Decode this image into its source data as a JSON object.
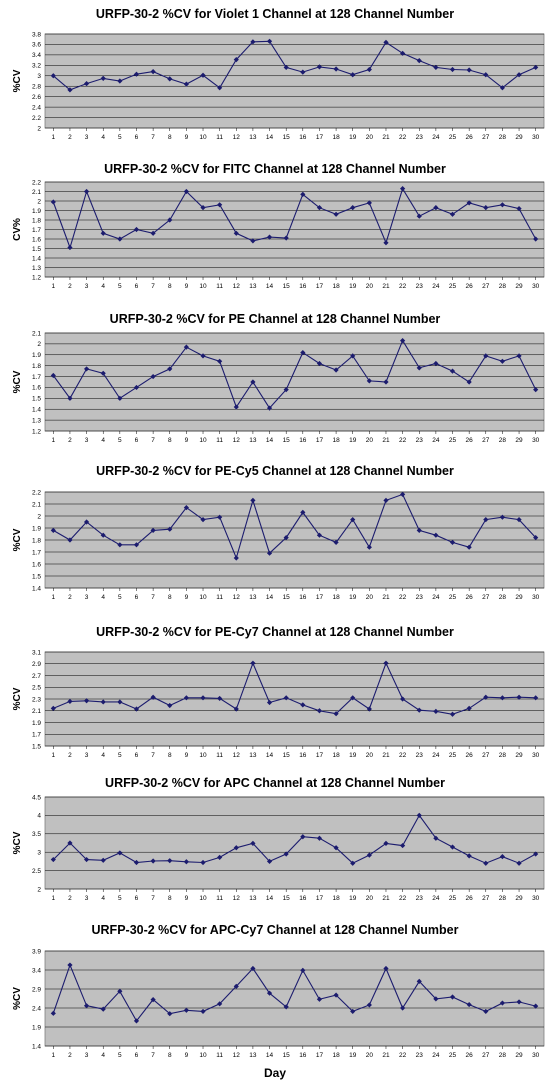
{
  "xlabel": "Day",
  "chart_data": [
    {
      "type": "line",
      "title": "URFP-30-2 %CV for Violet 1 Channel at 128 Channel Number",
      "ylabel": "%CV",
      "xlabel": "",
      "ylim": [
        2.0,
        3.8
      ],
      "yticks": [
        "2",
        "2.2",
        "2.4",
        "2.6",
        "2.8",
        "3",
        "3.2",
        "3.4",
        "3.6",
        "3.8"
      ],
      "grid": true,
      "x": [
        1,
        2,
        3,
        4,
        5,
        6,
        7,
        8,
        9,
        10,
        11,
        12,
        13,
        14,
        15,
        16,
        17,
        18,
        19,
        20,
        21,
        22,
        23,
        24,
        25,
        26,
        27,
        28,
        29,
        30
      ],
      "series": [
        {
          "values": [
            3.0,
            2.73,
            2.85,
            2.95,
            2.9,
            3.03,
            3.08,
            2.94,
            2.84,
            3.01,
            2.77,
            3.31,
            3.65,
            3.66,
            3.16,
            3.07,
            3.17,
            3.13,
            3.02,
            3.12,
            3.64,
            3.43,
            3.29,
            3.16,
            3.12,
            3.11,
            3.02,
            2.77,
            3.02,
            3.16
          ]
        }
      ]
    },
    {
      "type": "line",
      "title": "URFP-30-2 %CV for FITC Channel at 128 Channel Number",
      "ylabel": "CV%",
      "xlabel": "",
      "ylim": [
        1.2,
        2.2
      ],
      "yticks": [
        "1.2",
        "1.3",
        "1.4",
        "1.5",
        "1.6",
        "1.7",
        "1.8",
        "1.9",
        "2",
        "2.1",
        "2.2"
      ],
      "grid": true,
      "x": [
        1,
        2,
        3,
        4,
        5,
        6,
        7,
        8,
        9,
        10,
        11,
        12,
        13,
        14,
        15,
        16,
        17,
        18,
        19,
        20,
        21,
        22,
        23,
        24,
        25,
        26,
        27,
        28,
        29,
        30
      ],
      "series": [
        {
          "values": [
            1.99,
            1.51,
            2.1,
            1.66,
            1.6,
            1.7,
            1.66,
            1.8,
            2.1,
            1.93,
            1.96,
            1.66,
            1.58,
            1.62,
            1.61,
            2.07,
            1.93,
            1.86,
            1.93,
            1.98,
            1.56,
            2.13,
            1.84,
            1.93,
            1.86,
            1.98,
            1.93,
            1.96,
            1.92,
            1.6
          ]
        }
      ]
    },
    {
      "type": "line",
      "title": "URFP-30-2 %CV for PE Channel at 128 Channel Number",
      "ylabel": "%CV",
      "xlabel": "",
      "ylim": [
        1.2,
        2.1
      ],
      "yticks": [
        "1.2",
        "1.3",
        "1.4",
        "1.5",
        "1.6",
        "1.7",
        "1.8",
        "1.9",
        "2",
        "2.1"
      ],
      "grid": true,
      "x": [
        1,
        2,
        3,
        4,
        5,
        6,
        7,
        8,
        9,
        10,
        11,
        12,
        13,
        14,
        15,
        16,
        17,
        18,
        19,
        20,
        21,
        22,
        23,
        24,
        25,
        26,
        27,
        28,
        29,
        30
      ],
      "series": [
        {
          "values": [
            1.71,
            1.5,
            1.77,
            1.73,
            1.5,
            1.6,
            1.7,
            1.77,
            1.97,
            1.89,
            1.84,
            1.42,
            1.65,
            1.41,
            1.58,
            1.92,
            1.82,
            1.76,
            1.89,
            1.66,
            1.65,
            2.03,
            1.78,
            1.82,
            1.75,
            1.65,
            1.89,
            1.84,
            1.89,
            1.58
          ]
        }
      ]
    },
    {
      "type": "line",
      "title": "URFP-30-2 %CV for PE-Cy5 Channel at 128 Channel Number",
      "ylabel": "%CV",
      "xlabel": "",
      "ylim": [
        1.4,
        2.2
      ],
      "yticks": [
        "1.4",
        "1.5",
        "1.6",
        "1.7",
        "1.8",
        "1.9",
        "2",
        "2.1",
        "2.2"
      ],
      "grid": true,
      "x": [
        1,
        2,
        3,
        4,
        5,
        6,
        7,
        8,
        9,
        10,
        11,
        12,
        13,
        14,
        15,
        16,
        17,
        18,
        19,
        20,
        21,
        22,
        23,
        24,
        25,
        26,
        27,
        28,
        29,
        30
      ],
      "series": [
        {
          "values": [
            1.88,
            1.8,
            1.95,
            1.84,
            1.76,
            1.76,
            1.88,
            1.89,
            2.07,
            1.97,
            1.99,
            1.65,
            2.13,
            1.69,
            1.82,
            2.03,
            1.84,
            1.78,
            1.97,
            1.74,
            2.13,
            2.18,
            1.88,
            1.84,
            1.78,
            1.74,
            1.97,
            1.99,
            1.97,
            1.82
          ]
        }
      ]
    },
    {
      "type": "line",
      "title": "URFP-30-2 %CV for PE-Cy7 Channel at 128 Channel Number",
      "ylabel": "%CV",
      "xlabel": "",
      "ylim": [
        1.5,
        3.1
      ],
      "yticks": [
        "1.5",
        "1.7",
        "1.9",
        "2.1",
        "2.3",
        "2.5",
        "2.7",
        "2.9",
        "3.1"
      ],
      "grid": true,
      "x": [
        1,
        2,
        3,
        4,
        5,
        6,
        7,
        8,
        9,
        10,
        11,
        12,
        13,
        14,
        15,
        16,
        17,
        18,
        19,
        20,
        21,
        22,
        23,
        24,
        25,
        26,
        27,
        28,
        29,
        30
      ],
      "series": [
        {
          "values": [
            2.14,
            2.26,
            2.27,
            2.25,
            2.25,
            2.13,
            2.33,
            2.19,
            2.32,
            2.32,
            2.31,
            2.13,
            2.91,
            2.24,
            2.32,
            2.2,
            2.1,
            2.05,
            2.32,
            2.13,
            2.91,
            2.3,
            2.11,
            2.09,
            2.04,
            2.14,
            2.33,
            2.32,
            2.33,
            2.32
          ]
        }
      ]
    },
    {
      "type": "line",
      "title": "URFP-30-2 %CV for APC Channel at 128 Channel Number",
      "ylabel": "%CV",
      "xlabel": "",
      "ylim": [
        2.0,
        4.5
      ],
      "yticks": [
        "2",
        "2.5",
        "3",
        "3.5",
        "4",
        "4.5"
      ],
      "grid": true,
      "x": [
        1,
        2,
        3,
        4,
        5,
        6,
        7,
        8,
        9,
        10,
        11,
        12,
        13,
        14,
        15,
        16,
        17,
        18,
        19,
        20,
        21,
        22,
        23,
        24,
        25,
        26,
        27,
        28,
        29,
        30
      ],
      "series": [
        {
          "values": [
            2.8,
            3.25,
            2.8,
            2.78,
            2.98,
            2.72,
            2.76,
            2.77,
            2.74,
            2.72,
            2.86,
            3.12,
            3.24,
            2.75,
            2.95,
            3.42,
            3.38,
            3.12,
            2.7,
            2.92,
            3.24,
            3.18,
            4.0,
            3.38,
            3.14,
            2.9,
            2.7,
            2.88,
            2.7,
            2.95
          ]
        }
      ]
    },
    {
      "type": "line",
      "title": "URFP-30-2 %CV for APC-Cy7 Channel at 128 Channel Number",
      "ylabel": "%CV",
      "xlabel": "",
      "ylim": [
        1.4,
        3.9
      ],
      "yticks": [
        "1.4",
        "1.9",
        "2.4",
        "2.9",
        "3.4",
        "3.9"
      ],
      "grid": true,
      "x": [
        1,
        2,
        3,
        4,
        5,
        6,
        7,
        8,
        9,
        10,
        11,
        12,
        13,
        14,
        15,
        16,
        17,
        18,
        19,
        20,
        21,
        22,
        23,
        24,
        25,
        26,
        27,
        28,
        29,
        30
      ],
      "series": [
        {
          "values": [
            2.26,
            3.53,
            2.46,
            2.37,
            2.84,
            2.06,
            2.62,
            2.25,
            2.34,
            2.31,
            2.51,
            2.97,
            3.44,
            2.79,
            2.43,
            3.39,
            2.63,
            2.74,
            2.31,
            2.48,
            3.44,
            2.4,
            3.1,
            2.64,
            2.69,
            2.49,
            2.31,
            2.53,
            2.56,
            2.45
          ]
        }
      ]
    }
  ]
}
